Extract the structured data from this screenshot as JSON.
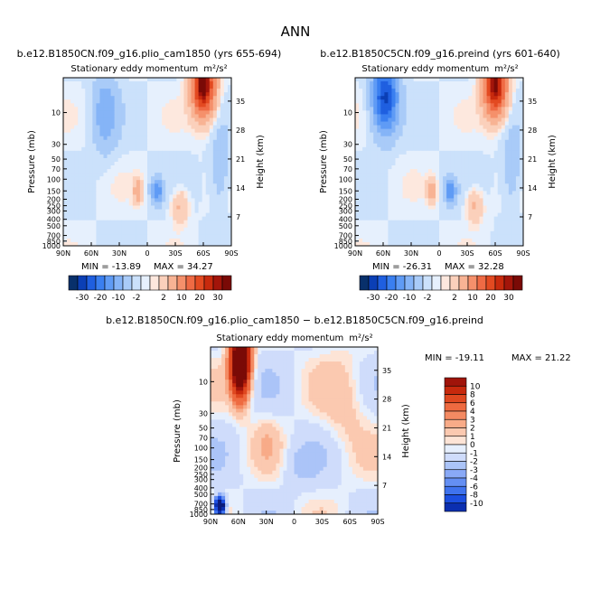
{
  "page": {
    "title": "ANN"
  },
  "colors": {
    "levels_palette": [
      "#08306b",
      "#0b3fb5",
      "#1f5fe0",
      "#3a7ff0",
      "#5f9bf5",
      "#85b4f7",
      "#a9cbf8",
      "#cbe1fb",
      "#e6f0fd",
      "#fde8de",
      "#fbd0bb",
      "#f8b394",
      "#f5906b",
      "#ef6a44",
      "#e34a21",
      "#c82a0d",
      "#a3150a",
      "#7a0a06"
    ],
    "diff_palette": [
      "#0a1a7a",
      "#0b2fb0",
      "#1c4fe0",
      "#3f73ee",
      "#648ff3",
      "#89a9f6",
      "#abc4f8",
      "#cfdcfb",
      "#e6effd",
      "#fde4d6",
      "#fbc9b0",
      "#f8ab88",
      "#f48a62",
      "#ee6a40",
      "#df4820",
      "#c7290d",
      "#a0140a",
      "#7a0a06"
    ]
  },
  "chart_data": [
    {
      "type": "heatmap",
      "id": "panel-1",
      "title": "b.e12.B1850CN.f09_g16.plio_cam1850 (yrs 655-694)",
      "subtitle": "Stationary eddy momentum",
      "units": "m²/s²",
      "xlabel": "",
      "ylabel": "Pressure (mb)",
      "y2label": "Height (km)",
      "xticks": [
        "90N",
        "60N",
        "30N",
        "0",
        "30S",
        "60S",
        "90S"
      ],
      "xrange": [
        -90,
        90
      ],
      "yticks": [
        "10",
        "30",
        "50",
        "70",
        "100",
        "150",
        "200",
        "250",
        "300",
        "400",
        "500",
        "700",
        "850",
        "1000"
      ],
      "y2ticks": [
        "35",
        "28",
        "21",
        "14",
        "7"
      ],
      "yrange_mb": [
        1000,
        3
      ],
      "min_label": "MIN = -13.89",
      "max_label": "MAX = 34.27",
      "min": -13.89,
      "max": 34.27,
      "colorbar_labels": [
        "-30",
        "-20",
        "-10",
        "-2",
        "2",
        "10",
        "20",
        "30"
      ],
      "features": [
        {
          "lat": -60,
          "p_mb": 4,
          "amp": 34.27,
          "w_lat": 12,
          "w_z": 7
        },
        {
          "lat": 45,
          "p_mb": 10,
          "amp": -9,
          "w_lat": 13,
          "w_z": 9
        },
        {
          "lat": -78,
          "p_mb": 70,
          "amp": -5,
          "w_lat": 10,
          "w_z": 9
        },
        {
          "lat": -10,
          "p_mb": 150,
          "amp": -13.89,
          "w_lat": 6,
          "w_z": 3
        },
        {
          "lat": 10,
          "p_mb": 150,
          "amp": 8,
          "w_lat": 5,
          "w_z": 3
        },
        {
          "lat": -35,
          "p_mb": 250,
          "amp": 6,
          "w_lat": 9,
          "w_z": 4
        }
      ]
    },
    {
      "type": "heatmap",
      "id": "panel-2",
      "title": "b.e12.B1850C5CN.f09_g16.preind (yrs 601-640)",
      "subtitle": "Stationary eddy momentum",
      "units": "m²/s²",
      "xlabel": "",
      "ylabel": "Pressure (mb)",
      "y2label": "Height (km)",
      "xticks": [
        "90N",
        "60N",
        "30N",
        "0",
        "30S",
        "60S",
        "90S"
      ],
      "xrange": [
        -90,
        90
      ],
      "yticks": [
        "10",
        "30",
        "50",
        "70",
        "100",
        "150",
        "200",
        "250",
        "300",
        "400",
        "500",
        "700",
        "850",
        "1000"
      ],
      "y2ticks": [
        "35",
        "28",
        "21",
        "14",
        "7"
      ],
      "yrange_mb": [
        1000,
        3
      ],
      "min_label": "MIN = -26.31",
      "max_label": "MAX = 32.28",
      "min": -26.31,
      "max": 32.28,
      "colorbar_labels": [
        "-30",
        "-20",
        "-10",
        "-2",
        "2",
        "10",
        "20",
        "30"
      ],
      "features": [
        {
          "lat": -60,
          "p_mb": 4,
          "amp": 32.28,
          "w_lat": 12,
          "w_z": 7
        },
        {
          "lat": 58,
          "p_mb": 6,
          "amp": -26.31,
          "w_lat": 13,
          "w_z": 8
        },
        {
          "lat": -78,
          "p_mb": 70,
          "amp": -5,
          "w_lat": 10,
          "w_z": 9
        },
        {
          "lat": -12,
          "p_mb": 150,
          "amp": -14,
          "w_lat": 6,
          "w_z": 3
        },
        {
          "lat": 8,
          "p_mb": 150,
          "amp": 8,
          "w_lat": 5,
          "w_z": 3
        },
        {
          "lat": -38,
          "p_mb": 250,
          "amp": 6,
          "w_lat": 9,
          "w_z": 4
        }
      ]
    },
    {
      "type": "heatmap",
      "id": "panel-diff",
      "title": "b.e12.B1850CN.f09_g16.plio_cam1850 − b.e12.B1850C5CN.f09_g16.preind",
      "subtitle": "Stationary eddy momentum",
      "units": "m²/s²",
      "xlabel": "",
      "ylabel": "Pressure (mb)",
      "y2label": "Height (km)",
      "xticks": [
        "90N",
        "60N",
        "30N",
        "0",
        "30S",
        "60S",
        "90S"
      ],
      "xrange": [
        -90,
        90
      ],
      "yticks": [
        "10",
        "30",
        "50",
        "70",
        "100",
        "150",
        "200",
        "250",
        "300",
        "400",
        "500",
        "700",
        "850",
        "1000"
      ],
      "y2ticks": [
        "35",
        "28",
        "21",
        "14",
        "7"
      ],
      "yrange_mb": [
        1000,
        3
      ],
      "min_label": "MIN = -19.11",
      "max_label": "MAX = 21.22",
      "min": -19.11,
      "max": 21.22,
      "colorbar_labels": [
        "10",
        "8",
        "6",
        "4",
        "3",
        "2",
        "1",
        "0",
        "-1",
        "-2",
        "-3",
        "-4",
        "-6",
        "-8",
        "-10"
      ],
      "features": [
        {
          "lat": 58,
          "p_mb": 5,
          "amp": 21.22,
          "w_lat": 10,
          "w_z": 8
        },
        {
          "lat": -55,
          "p_mb": 20,
          "amp": 1.5,
          "w_lat": 25,
          "w_z": 12
        },
        {
          "lat": 80,
          "p_mb": 750,
          "amp": -19.11,
          "w_lat": 5,
          "w_z": 2
        },
        {
          "lat": -5,
          "p_mb": 180,
          "amp": -1.2,
          "w_lat": 18,
          "w_z": 5
        },
        {
          "lat": 30,
          "p_mb": 80,
          "amp": 1.2,
          "w_lat": 15,
          "w_z": 6
        }
      ]
    }
  ]
}
